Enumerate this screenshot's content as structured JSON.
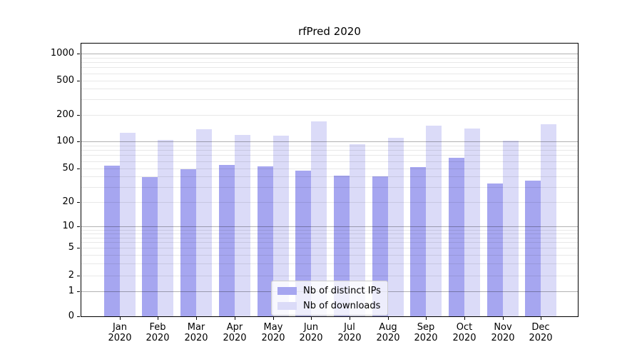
{
  "chart_data": {
    "type": "bar",
    "title": "rfPred 2020",
    "categories": [
      "Jan",
      "Feb",
      "Mar",
      "Apr",
      "May",
      "Jun",
      "Jul",
      "Aug",
      "Sep",
      "Oct",
      "Nov",
      "Dec"
    ],
    "category_year": "2020",
    "series": [
      {
        "name": "Nb of distinct IPs",
        "color": "#a6a6f0",
        "values": [
          53,
          39,
          49,
          54,
          52,
          47,
          41,
          40,
          51,
          65,
          33,
          36
        ]
      },
      {
        "name": "Nb of downloads",
        "color": "#dbdbf8",
        "values": [
          125,
          105,
          137,
          118,
          116,
          170,
          94,
          111,
          152,
          141,
          103,
          158
        ]
      }
    ],
    "xlabel": "",
    "ylabel": "",
    "y_ticks": [
      0,
      1,
      2,
      5,
      10,
      20,
      50,
      100,
      200,
      500,
      1000
    ],
    "y_scale": "log-like (powers of ten as major lines, 0 pinned at baseline)",
    "ylim": [
      0,
      1300
    ],
    "grid": "horizontal only: major at 1,10,100,1000; minor at 2-9 per decade",
    "legend_position": "inside plot, lower center-left"
  }
}
